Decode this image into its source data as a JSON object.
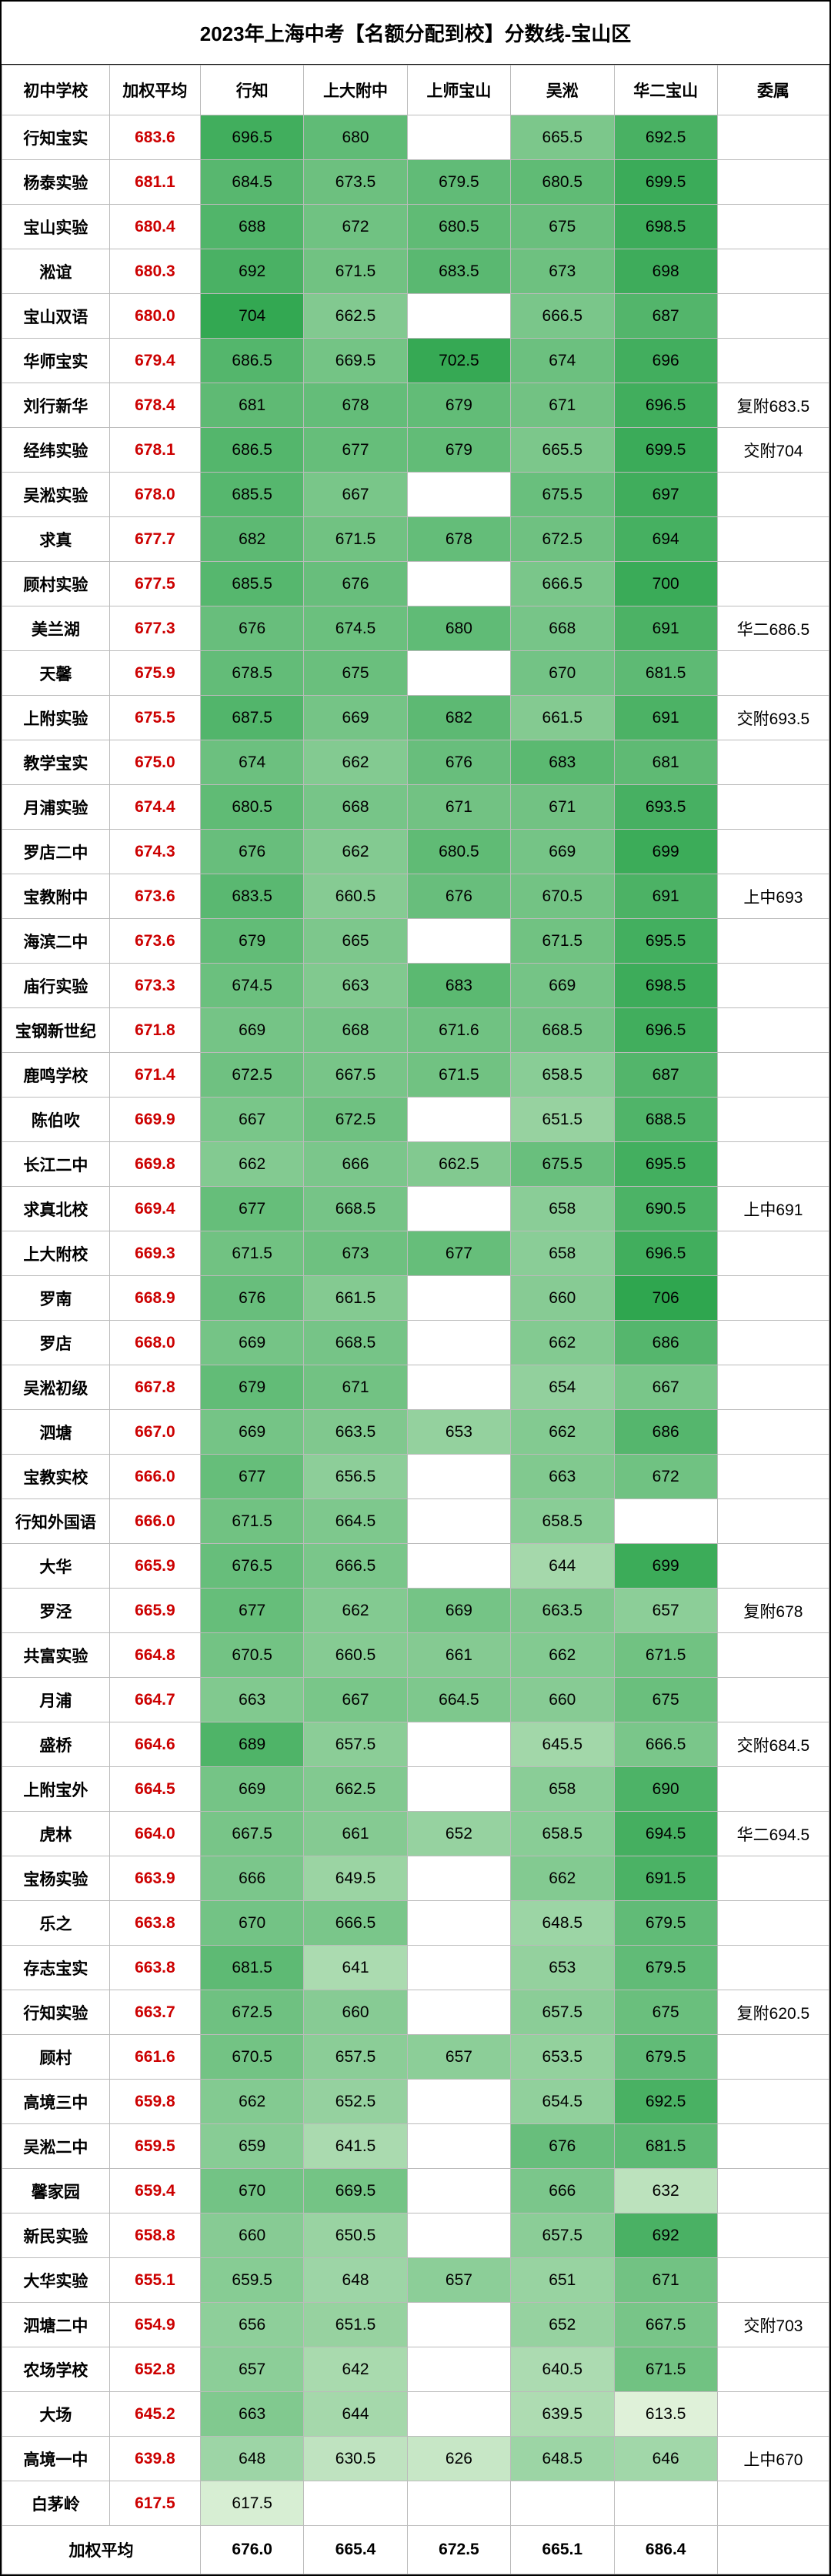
{
  "title": "2023年上海中考【名额分配到校】分数线-宝山区",
  "headers": [
    "初中学校",
    "加权平均",
    "行知",
    "上大附中",
    "上师宝山",
    "吴淞",
    "华二宝山",
    "委属"
  ],
  "footer_label": "加权平均",
  "footer_values": [
    "676.0",
    "665.4",
    "672.5",
    "665.1",
    "686.4",
    ""
  ],
  "color_scale": {
    "min_color": "#dff1d9",
    "max_color": "#2fa64f",
    "empty_color": "#ffffff"
  },
  "fonts": {
    "title": 26,
    "header": 21,
    "cell": 21
  },
  "rows": [
    {
      "school": "行知宝实",
      "avg": "683.6",
      "v": [
        "696.5",
        "680",
        "",
        "665.5",
        "692.5"
      ],
      "extra": ""
    },
    {
      "school": "杨泰实验",
      "avg": "681.1",
      "v": [
        "684.5",
        "673.5",
        "679.5",
        "680.5",
        "699.5"
      ],
      "extra": ""
    },
    {
      "school": "宝山实验",
      "avg": "680.4",
      "v": [
        "688",
        "672",
        "680.5",
        "675",
        "698.5"
      ],
      "extra": ""
    },
    {
      "school": "淞谊",
      "avg": "680.3",
      "v": [
        "692",
        "671.5",
        "683.5",
        "673",
        "698"
      ],
      "extra": ""
    },
    {
      "school": "宝山双语",
      "avg": "680.0",
      "v": [
        "704",
        "662.5",
        "",
        "666.5",
        "687"
      ],
      "extra": ""
    },
    {
      "school": "华师宝实",
      "avg": "679.4",
      "v": [
        "686.5",
        "669.5",
        "702.5",
        "674",
        "696"
      ],
      "extra": ""
    },
    {
      "school": "刘行新华",
      "avg": "678.4",
      "v": [
        "681",
        "678",
        "679",
        "671",
        "696.5"
      ],
      "extra": "复附683.5"
    },
    {
      "school": "经纬实验",
      "avg": "678.1",
      "v": [
        "686.5",
        "677",
        "679",
        "665.5",
        "699.5"
      ],
      "extra": "交附704"
    },
    {
      "school": "吴淞实验",
      "avg": "678.0",
      "v": [
        "685.5",
        "667",
        "",
        "675.5",
        "697"
      ],
      "extra": ""
    },
    {
      "school": "求真",
      "avg": "677.7",
      "v": [
        "682",
        "671.5",
        "678",
        "672.5",
        "694"
      ],
      "extra": ""
    },
    {
      "school": "顾村实验",
      "avg": "677.5",
      "v": [
        "685.5",
        "676",
        "",
        "666.5",
        "700"
      ],
      "extra": ""
    },
    {
      "school": "美兰湖",
      "avg": "677.3",
      "v": [
        "676",
        "674.5",
        "680",
        "668",
        "691"
      ],
      "extra": "华二686.5"
    },
    {
      "school": "天馨",
      "avg": "675.9",
      "v": [
        "678.5",
        "675",
        "",
        "670",
        "681.5"
      ],
      "extra": ""
    },
    {
      "school": "上附实验",
      "avg": "675.5",
      "v": [
        "687.5",
        "669",
        "682",
        "661.5",
        "691"
      ],
      "extra": "交附693.5"
    },
    {
      "school": "教学宝实",
      "avg": "675.0",
      "v": [
        "674",
        "662",
        "676",
        "683",
        "681"
      ],
      "extra": ""
    },
    {
      "school": "月浦实验",
      "avg": "674.4",
      "v": [
        "680.5",
        "668",
        "671",
        "671",
        "693.5"
      ],
      "extra": ""
    },
    {
      "school": "罗店二中",
      "avg": "674.3",
      "v": [
        "676",
        "662",
        "680.5",
        "669",
        "699"
      ],
      "extra": ""
    },
    {
      "school": "宝教附中",
      "avg": "673.6",
      "v": [
        "683.5",
        "660.5",
        "676",
        "670.5",
        "691"
      ],
      "extra": "上中693"
    },
    {
      "school": "海滨二中",
      "avg": "673.6",
      "v": [
        "679",
        "665",
        "",
        "671.5",
        "695.5"
      ],
      "extra": ""
    },
    {
      "school": "庙行实验",
      "avg": "673.3",
      "v": [
        "674.5",
        "663",
        "683",
        "669",
        "698.5"
      ],
      "extra": ""
    },
    {
      "school": "宝钢新世纪",
      "avg": "671.8",
      "v": [
        "669",
        "668",
        "671.6",
        "668.5",
        "696.5"
      ],
      "extra": ""
    },
    {
      "school": "鹿鸣学校",
      "avg": "671.4",
      "v": [
        "672.5",
        "667.5",
        "671.5",
        "658.5",
        "687"
      ],
      "extra": ""
    },
    {
      "school": "陈伯吹",
      "avg": "669.9",
      "v": [
        "667",
        "672.5",
        "",
        "651.5",
        "688.5"
      ],
      "extra": ""
    },
    {
      "school": "长江二中",
      "avg": "669.8",
      "v": [
        "662",
        "666",
        "662.5",
        "675.5",
        "695.5"
      ],
      "extra": ""
    },
    {
      "school": "求真北校",
      "avg": "669.4",
      "v": [
        "677",
        "668.5",
        "",
        "658",
        "690.5"
      ],
      "extra": "上中691"
    },
    {
      "school": "上大附校",
      "avg": "669.3",
      "v": [
        "671.5",
        "673",
        "677",
        "658",
        "696.5"
      ],
      "extra": ""
    },
    {
      "school": "罗南",
      "avg": "668.9",
      "v": [
        "676",
        "661.5",
        "",
        "660",
        "706"
      ],
      "extra": ""
    },
    {
      "school": "罗店",
      "avg": "668.0",
      "v": [
        "669",
        "668.5",
        "",
        "662",
        "686"
      ],
      "extra": ""
    },
    {
      "school": "吴淞初级",
      "avg": "667.8",
      "v": [
        "679",
        "671",
        "",
        "654",
        "667"
      ],
      "extra": ""
    },
    {
      "school": "泗塘",
      "avg": "667.0",
      "v": [
        "669",
        "663.5",
        "653",
        "662",
        "686"
      ],
      "extra": ""
    },
    {
      "school": "宝教实校",
      "avg": "666.0",
      "v": [
        "677",
        "656.5",
        "",
        "663",
        "672"
      ],
      "extra": ""
    },
    {
      "school": "行知外国语",
      "avg": "666.0",
      "v": [
        "671.5",
        "664.5",
        "",
        "658.5",
        ""
      ],
      "extra": ""
    },
    {
      "school": "大华",
      "avg": "665.9",
      "v": [
        "676.5",
        "666.5",
        "",
        "644",
        "699"
      ],
      "extra": ""
    },
    {
      "school": "罗泾",
      "avg": "665.9",
      "v": [
        "677",
        "662",
        "669",
        "663.5",
        "657"
      ],
      "extra": "复附678"
    },
    {
      "school": "共富实验",
      "avg": "664.8",
      "v": [
        "670.5",
        "660.5",
        "661",
        "662",
        "671.5"
      ],
      "extra": ""
    },
    {
      "school": "月浦",
      "avg": "664.7",
      "v": [
        "663",
        "667",
        "664.5",
        "660",
        "675"
      ],
      "extra": ""
    },
    {
      "school": "盛桥",
      "avg": "664.6",
      "v": [
        "689",
        "657.5",
        "",
        "645.5",
        "666.5"
      ],
      "extra": "交附684.5"
    },
    {
      "school": "上附宝外",
      "avg": "664.5",
      "v": [
        "669",
        "662.5",
        "",
        "658",
        "690"
      ],
      "extra": ""
    },
    {
      "school": "虎林",
      "avg": "664.0",
      "v": [
        "667.5",
        "661",
        "652",
        "658.5",
        "694.5"
      ],
      "extra": "华二694.5"
    },
    {
      "school": "宝杨实验",
      "avg": "663.9",
      "v": [
        "666",
        "649.5",
        "",
        "662",
        "691.5"
      ],
      "extra": ""
    },
    {
      "school": "乐之",
      "avg": "663.8",
      "v": [
        "670",
        "666.5",
        "",
        "648.5",
        "679.5"
      ],
      "extra": ""
    },
    {
      "school": "存志宝实",
      "avg": "663.8",
      "v": [
        "681.5",
        "641",
        "",
        "653",
        "679.5"
      ],
      "extra": ""
    },
    {
      "school": "行知实验",
      "avg": "663.7",
      "v": [
        "672.5",
        "660",
        "",
        "657.5",
        "675"
      ],
      "extra": "复附620.5"
    },
    {
      "school": "顾村",
      "avg": "661.6",
      "v": [
        "670.5",
        "657.5",
        "657",
        "653.5",
        "679.5"
      ],
      "extra": ""
    },
    {
      "school": "高境三中",
      "avg": "659.8",
      "v": [
        "662",
        "652.5",
        "",
        "654.5",
        "692.5"
      ],
      "extra": ""
    },
    {
      "school": "吴淞二中",
      "avg": "659.5",
      "v": [
        "659",
        "641.5",
        "",
        "676",
        "681.5"
      ],
      "extra": ""
    },
    {
      "school": "馨家园",
      "avg": "659.4",
      "v": [
        "670",
        "669.5",
        "",
        "666",
        "632"
      ],
      "extra": ""
    },
    {
      "school": "新民实验",
      "avg": "658.8",
      "v": [
        "660",
        "650.5",
        "",
        "657.5",
        "692"
      ],
      "extra": ""
    },
    {
      "school": "大华实验",
      "avg": "655.1",
      "v": [
        "659.5",
        "648",
        "657",
        "651",
        "671"
      ],
      "extra": ""
    },
    {
      "school": "泗塘二中",
      "avg": "654.9",
      "v": [
        "656",
        "651.5",
        "",
        "652",
        "667.5"
      ],
      "extra": "交附703"
    },
    {
      "school": "农场学校",
      "avg": "652.8",
      "v": [
        "657",
        "642",
        "",
        "640.5",
        "671.5"
      ],
      "extra": ""
    },
    {
      "school": "大场",
      "avg": "645.2",
      "v": [
        "663",
        "644",
        "",
        "639.5",
        "613.5"
      ],
      "extra": ""
    },
    {
      "school": "高境一中",
      "avg": "639.8",
      "v": [
        "648",
        "630.5",
        "626",
        "648.5",
        "646"
      ],
      "extra": "上中670"
    },
    {
      "school": "白茅岭",
      "avg": "617.5",
      "v": [
        "617.5",
        "",
        "",
        "",
        ""
      ],
      "extra": ""
    }
  ]
}
